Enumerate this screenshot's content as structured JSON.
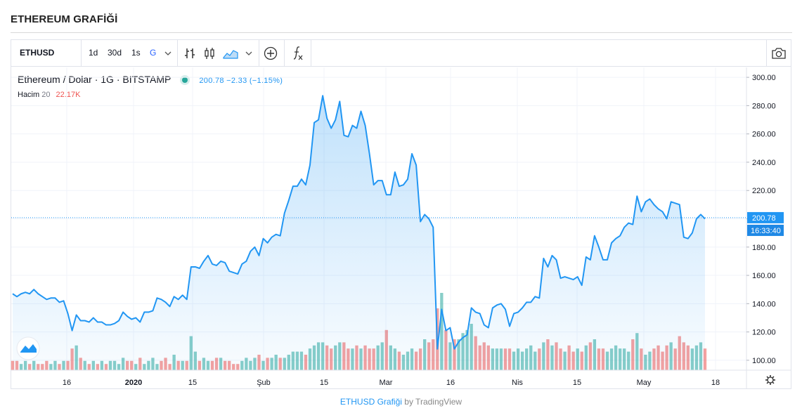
{
  "page": {
    "title": "ETHEREUM GRAFİĞİ"
  },
  "toolbar": {
    "symbol": "ETHUSD",
    "intervals": [
      "1d",
      "30d",
      "1s",
      "G"
    ],
    "active_interval": "G",
    "icons": [
      "chevron-down-icon",
      "bar-chart-icon",
      "candlestick-icon",
      "area-chart-icon",
      "chevron-down-icon",
      "add-indicator-icon",
      "fx-icon",
      "camera-icon"
    ]
  },
  "legend": {
    "name": "Ethereum / Dolar · 1G · BITSTAMP",
    "values": "200.78  −2.33  (−1.15%)",
    "volume_label": "Hacim",
    "volume_length": "20",
    "volume_value": "22.17K"
  },
  "footer": {
    "link": "ETHUSD Grafiği",
    "by": "by TradingView"
  },
  "colors": {
    "line": "#2196f3",
    "up_volume": "#26a69a",
    "down_volume": "#ef5350",
    "fill": "#d6eafc"
  },
  "chart_data": {
    "type": "area",
    "title": "Ethereum / Dolar · 1G · BITSTAMP",
    "y_ticks": [
      "300.00",
      "280.00",
      "260.00",
      "240.00",
      "220.00",
      "200.00",
      "180.00",
      "160.00",
      "140.00",
      "120.00",
      "100.00"
    ],
    "ylim": [
      93,
      307
    ],
    "x_tick_labels": [
      "16",
      "2020",
      "15",
      "Şub",
      "15",
      "Mar",
      "16",
      "Nis",
      "15",
      "May",
      "18"
    ],
    "last_price_label": "200.78",
    "countdown_label": "16:33:40",
    "last_price": 200.78,
    "grid": true,
    "series": [
      {
        "values": [
          147,
          145,
          147,
          148,
          147,
          150,
          147,
          145,
          143,
          144,
          144,
          141,
          142,
          133,
          121,
          132,
          128,
          128,
          127,
          130,
          127,
          127,
          125,
          125,
          126,
          128,
          134,
          131,
          129,
          130,
          127,
          134,
          134,
          135,
          144,
          143,
          141,
          138,
          145,
          143,
          146,
          143,
          166,
          166,
          165,
          170,
          174,
          168,
          167,
          170,
          169,
          163,
          162,
          161,
          168,
          170,
          177,
          180,
          174,
          186,
          183,
          187,
          189,
          188,
          204,
          213,
          223,
          223,
          228,
          224,
          238,
          268,
          270,
          287,
          271,
          264,
          270,
          283,
          259,
          258,
          266,
          264,
          276,
          266,
          246,
          224,
          227,
          227,
          217,
          217,
          233,
          223,
          224,
          228,
          246,
          238,
          198,
          203,
          200,
          194,
          108,
          136,
          121,
          123,
          108,
          113,
          116,
          118,
          137,
          134,
          133,
          125,
          123,
          137,
          139,
          140,
          136,
          124,
          133,
          134,
          137,
          141,
          141,
          145,
          144,
          172,
          166,
          174,
          171,
          158,
          159,
          158,
          157,
          159,
          153,
          173,
          171,
          188,
          180,
          171,
          171,
          183,
          186,
          188,
          194,
          197,
          196,
          216,
          205,
          212,
          214,
          210,
          207,
          205,
          200,
          212,
          211,
          210,
          187,
          186,
          190,
          200,
          203,
          200
        ],
        "volumes": [
          3,
          3,
          2,
          3,
          2,
          3,
          2,
          2,
          3,
          2,
          3,
          2,
          3,
          3,
          7,
          8,
          4,
          3,
          2,
          3,
          2,
          3,
          2,
          3,
          3,
          2,
          4,
          3,
          3,
          2,
          4,
          2,
          3,
          4,
          2,
          3,
          4,
          2,
          5,
          3,
          3,
          3,
          11,
          6,
          3,
          4,
          3,
          3,
          4,
          4,
          3,
          3,
          2,
          2,
          3,
          4,
          3,
          4,
          5,
          3,
          4,
          4,
          5,
          4,
          4,
          5,
          6,
          6,
          6,
          5,
          7,
          8,
          9,
          9,
          8,
          7,
          8,
          9,
          9,
          7,
          7,
          8,
          7,
          8,
          7,
          7,
          8,
          9,
          13,
          8,
          7,
          6,
          5,
          6,
          7,
          6,
          7,
          10,
          9,
          10,
          20,
          25,
          13,
          9,
          10,
          10,
          12,
          13,
          15,
          11,
          8,
          9,
          8,
          7,
          7,
          7,
          7,
          7,
          6,
          7,
          6,
          7,
          8,
          6,
          7,
          9,
          10,
          8,
          9,
          7,
          6,
          8,
          6,
          7,
          6,
          8,
          9,
          10,
          7,
          7,
          6,
          7,
          8,
          7,
          7,
          6,
          10,
          12,
          7,
          5,
          6,
          7,
          8,
          6,
          8,
          9,
          7,
          11,
          9,
          8,
          7,
          8,
          9,
          7
        ],
        "volume_directions": [
          "d",
          "d",
          "u",
          "u",
          "d",
          "u",
          "d",
          "d",
          "d",
          "u",
          "u",
          "d",
          "u",
          "d",
          "d",
          "u",
          "d",
          "u",
          "d",
          "u",
          "d",
          "u",
          "d",
          "u",
          "u",
          "u",
          "u",
          "d",
          "d",
          "u",
          "d",
          "u",
          "u",
          "u",
          "u",
          "d",
          "d",
          "d",
          "u",
          "d",
          "u",
          "d",
          "u",
          "u",
          "d",
          "u",
          "u",
          "d",
          "d",
          "u",
          "d",
          "d",
          "d",
          "d",
          "u",
          "u",
          "u",
          "u",
          "d",
          "u",
          "d",
          "u",
          "u",
          "d",
          "u",
          "u",
          "u",
          "u",
          "u",
          "d",
          "u",
          "u",
          "u",
          "u",
          "d",
          "d",
          "u",
          "u",
          "d",
          "d",
          "u",
          "d",
          "u",
          "d",
          "d",
          "d",
          "u",
          "u",
          "d",
          "u",
          "u",
          "d",
          "u",
          "u",
          "u",
          "d",
          "d",
          "u",
          "d",
          "d",
          "d",
          "u",
          "d",
          "u",
          "d",
          "u",
          "u",
          "u",
          "u",
          "d",
          "d",
          "d",
          "d",
          "u",
          "u",
          "u",
          "d",
          "d",
          "u",
          "u",
          "u",
          "u",
          "u",
          "u",
          "d",
          "u",
          "d",
          "u",
          "d",
          "d",
          "u",
          "d",
          "d",
          "u",
          "d",
          "u",
          "d",
          "u",
          "d",
          "d",
          "u",
          "u",
          "u",
          "u",
          "u",
          "u",
          "d",
          "u",
          "d",
          "u",
          "u",
          "d",
          "d",
          "d",
          "d",
          "u",
          "d",
          "d",
          "d",
          "d",
          "u",
          "u",
          "u",
          "d"
        ]
      }
    ]
  }
}
